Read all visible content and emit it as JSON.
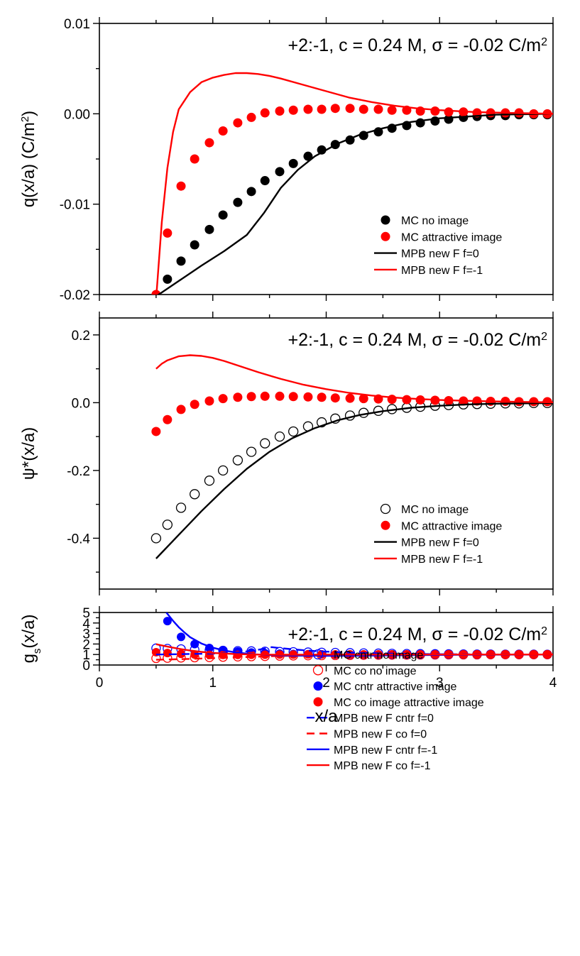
{
  "x_axis": {
    "label": "x/a",
    "ticks": [
      "0",
      "1",
      "2",
      "3",
      "4"
    ]
  },
  "chart_data": [
    {
      "type": "line",
      "title": "+2:-1, c = 0.24 M, σ = -0.02 C/m²",
      "ylabel": "q(x/a) (C/m²)",
      "xlabel": "x/a",
      "xlim": [
        0,
        4
      ],
      "ylim": [
        -0.02,
        0.01
      ],
      "yticks": [
        "-0.02",
        "-0.01",
        "0.00",
        "0.01"
      ],
      "grid": false,
      "legend_position": "bottom-right",
      "series": [
        {
          "name": "MC no image",
          "kind": "filled-circle",
          "color": "#000000",
          "x": [
            0.6,
            0.72,
            0.84,
            0.97,
            1.09,
            1.22,
            1.34,
            1.46,
            1.59,
            1.71,
            1.84,
            1.96,
            2.08,
            2.21,
            2.33,
            2.46,
            2.58,
            2.71,
            2.83,
            2.96,
            3.08,
            3.21,
            3.33,
            3.45,
            3.58,
            3.7,
            3.83,
            3.95
          ],
          "y": [
            -0.0183,
            -0.0163,
            -0.0145,
            -0.0128,
            -0.0112,
            -0.0098,
            -0.0086,
            -0.0074,
            -0.0064,
            -0.0055,
            -0.0047,
            -0.004,
            -0.0034,
            -0.0029,
            -0.0024,
            -0.002,
            -0.0016,
            -0.0013,
            -0.001,
            -0.0008,
            -0.0006,
            -0.0004,
            -0.0003,
            -0.0002,
            -0.0002,
            -0.0001,
            -0.0001,
            -0.0001
          ]
        },
        {
          "name": "MC attractive image",
          "kind": "filled-circle",
          "color": "#ff0000",
          "x": [
            0.5,
            0.6,
            0.72,
            0.84,
            0.97,
            1.09,
            1.22,
            1.34,
            1.46,
            1.59,
            1.71,
            1.84,
            1.96,
            2.08,
            2.21,
            2.33,
            2.46,
            2.58,
            2.71,
            2.83,
            2.96,
            3.08,
            3.21,
            3.33,
            3.45,
            3.58,
            3.7,
            3.83,
            3.95
          ],
          "y": [
            -0.02,
            -0.0132,
            -0.008,
            -0.005,
            -0.0032,
            -0.0019,
            -0.001,
            -0.0004,
            0.0001,
            0.0003,
            0.0004,
            0.0005,
            0.0005,
            0.0006,
            0.0006,
            0.0005,
            0.0005,
            0.0004,
            0.0004,
            0.0003,
            0.0003,
            0.0002,
            0.0002,
            0.0001,
            0.0001,
            0.0001,
            0.0001,
            0.0,
            0.0
          ]
        },
        {
          "name": "MPB new F f=0",
          "kind": "line",
          "color": "#000000",
          "x": [
            0.5,
            0.7,
            0.9,
            1.1,
            1.3,
            1.45,
            1.6,
            1.75,
            1.9,
            2.1,
            2.3,
            2.5,
            2.75,
            3.0,
            3.25,
            3.5,
            4.0
          ],
          "y": [
            -0.0202,
            -0.0185,
            -0.0168,
            -0.0152,
            -0.0134,
            -0.011,
            -0.0082,
            -0.0062,
            -0.0047,
            -0.0033,
            -0.0023,
            -0.0016,
            -0.0009,
            -0.0005,
            -0.0003,
            -0.0001,
            0.0
          ]
        },
        {
          "name": "MPB new F f=-1",
          "kind": "line",
          "color": "#ff0000",
          "x": [
            0.5,
            0.55,
            0.6,
            0.65,
            0.7,
            0.8,
            0.9,
            1.0,
            1.1,
            1.2,
            1.3,
            1.4,
            1.5,
            1.6,
            1.8,
            2.0,
            2.2,
            2.4,
            2.6,
            2.8,
            3.0,
            3.3,
            3.6,
            4.0
          ],
          "y": [
            -0.0205,
            -0.012,
            -0.006,
            -0.002,
            0.0005,
            0.0024,
            0.0035,
            0.004,
            0.0043,
            0.0045,
            0.0045,
            0.0044,
            0.0042,
            0.0039,
            0.0032,
            0.0025,
            0.0018,
            0.0013,
            0.0009,
            0.0006,
            0.0004,
            0.0002,
            0.0001,
            0.0
          ]
        }
      ]
    },
    {
      "type": "line",
      "title": "+2:-1, c = 0.24 M, σ = -0.02 C/m²",
      "ylabel": "ψ*(x/a)",
      "xlabel": "x/a",
      "xlim": [
        0,
        4
      ],
      "ylim": [
        -0.55,
        0.25
      ],
      "yticks": [
        "-0.4",
        "-0.2",
        "0.0",
        "0.2"
      ],
      "grid": false,
      "legend_position": "bottom-right",
      "series": [
        {
          "name": "MC no image",
          "kind": "open-circle",
          "color": "#000000",
          "x": [
            0.5,
            0.6,
            0.72,
            0.84,
            0.97,
            1.09,
            1.22,
            1.34,
            1.46,
            1.59,
            1.71,
            1.84,
            1.96,
            2.08,
            2.21,
            2.33,
            2.46,
            2.58,
            2.71,
            2.83,
            2.96,
            3.08,
            3.21,
            3.33,
            3.45,
            3.58,
            3.7,
            3.83,
            3.95
          ],
          "y": [
            -0.4,
            -0.36,
            -0.31,
            -0.27,
            -0.23,
            -0.2,
            -0.17,
            -0.145,
            -0.12,
            -0.1,
            -0.085,
            -0.07,
            -0.058,
            -0.047,
            -0.038,
            -0.03,
            -0.024,
            -0.019,
            -0.015,
            -0.012,
            -0.009,
            -0.007,
            -0.005,
            -0.004,
            -0.003,
            -0.002,
            -0.002,
            -0.001,
            -0.001
          ]
        },
        {
          "name": "MC attractive image",
          "kind": "filled-circle",
          "color": "#ff0000",
          "x": [
            0.5,
            0.6,
            0.72,
            0.84,
            0.97,
            1.09,
            1.22,
            1.34,
            1.46,
            1.59,
            1.71,
            1.84,
            1.96,
            2.08,
            2.21,
            2.33,
            2.46,
            2.58,
            2.71,
            2.83,
            2.96,
            3.08,
            3.21,
            3.33,
            3.45,
            3.58,
            3.7,
            3.83,
            3.95
          ],
          "y": [
            -0.085,
            -0.05,
            -0.02,
            -0.005,
            0.005,
            0.012,
            0.016,
            0.018,
            0.019,
            0.019,
            0.018,
            0.017,
            0.016,
            0.014,
            0.013,
            0.012,
            0.011,
            0.01,
            0.009,
            0.008,
            0.007,
            0.006,
            0.005,
            0.005,
            0.004,
            0.004,
            0.003,
            0.003,
            0.003
          ]
        },
        {
          "name": "MPB new F f=0",
          "kind": "line",
          "color": "#000000",
          "x": [
            0.5,
            0.7,
            0.9,
            1.1,
            1.3,
            1.5,
            1.7,
            1.9,
            2.1,
            2.3,
            2.5,
            2.75,
            3.0,
            3.25,
            3.5,
            4.0
          ],
          "y": [
            -0.46,
            -0.39,
            -0.32,
            -0.255,
            -0.195,
            -0.145,
            -0.105,
            -0.075,
            -0.052,
            -0.036,
            -0.025,
            -0.015,
            -0.009,
            -0.005,
            -0.003,
            -0.001
          ]
        },
        {
          "name": "MPB new F f=-1",
          "kind": "line",
          "color": "#ff0000",
          "x": [
            0.5,
            0.55,
            0.6,
            0.7,
            0.8,
            0.9,
            1.0,
            1.1,
            1.2,
            1.4,
            1.6,
            1.8,
            2.0,
            2.2,
            2.4,
            2.6,
            2.8,
            3.0,
            3.3,
            3.6,
            4.0
          ],
          "y": [
            0.1,
            0.115,
            0.125,
            0.137,
            0.14,
            0.138,
            0.132,
            0.123,
            0.112,
            0.09,
            0.07,
            0.053,
            0.04,
            0.029,
            0.021,
            0.015,
            0.011,
            0.008,
            0.005,
            0.003,
            0.001
          ]
        }
      ]
    },
    {
      "type": "line",
      "title": "+2:-1, c = 0.24 M, σ = -0.02 C/m²",
      "ylabel": "g_s(x/a)",
      "xlabel": "x/a",
      "xlim": [
        0,
        4
      ],
      "ylim": [
        0,
        5
      ],
      "yticks": [
        "0",
        "1",
        "2",
        "3",
        "4",
        "5"
      ],
      "grid": false,
      "legend_position": "top-right",
      "series": [
        {
          "name": "MC cntr no image",
          "kind": "open-circle",
          "color": "#0000ff",
          "x": [
            0.5,
            0.6,
            0.72,
            0.84,
            0.97,
            1.09,
            1.22,
            1.34,
            1.46,
            1.59,
            1.71,
            1.84,
            1.96,
            2.08,
            2.21,
            2.33,
            2.46,
            2.58,
            2.71,
            2.83,
            2.96,
            3.08,
            3.21,
            3.33,
            3.45,
            3.58,
            3.7,
            3.83,
            3.95
          ],
          "y": [
            1.6,
            1.56,
            1.52,
            1.46,
            1.42,
            1.38,
            1.35,
            1.33,
            1.3,
            1.27,
            1.25,
            1.22,
            1.2,
            1.18,
            1.16,
            1.14,
            1.12,
            1.1,
            1.08,
            1.07,
            1.06,
            1.05,
            1.04,
            1.03,
            1.03,
            1.02,
            1.02,
            1.02,
            1.01
          ]
        },
        {
          "name": "MC co no image",
          "kind": "open-circle",
          "color": "#ff0000",
          "x": [
            0.5,
            0.6,
            0.72,
            0.84,
            0.97,
            1.09,
            1.22,
            1.34,
            1.46,
            1.59,
            1.71,
            1.84,
            1.96,
            2.08,
            2.21,
            2.33,
            2.46,
            2.58,
            2.71,
            2.83,
            2.96,
            3.08,
            3.21,
            3.33,
            3.45,
            3.58,
            3.7,
            3.83,
            3.95
          ],
          "y": [
            0.64,
            0.66,
            0.69,
            0.71,
            0.73,
            0.76,
            0.79,
            0.81,
            0.83,
            0.86,
            0.88,
            0.9,
            0.91,
            0.92,
            0.93,
            0.94,
            0.95,
            0.96,
            0.96,
            0.97,
            0.97,
            0.98,
            0.98,
            0.98,
            0.99,
            0.99,
            0.99,
            0.99,
            0.99
          ]
        },
        {
          "name": "MC cntr attractive image",
          "kind": "filled-circle",
          "color": "#0000ff",
          "x": [
            0.6,
            0.72,
            0.84,
            0.97,
            1.09,
            1.22,
            1.34,
            1.46,
            1.59,
            1.71,
            1.84,
            1.96,
            2.08,
            2.21,
            2.33,
            2.46,
            2.58,
            2.71,
            2.83,
            2.96,
            3.08,
            3.21,
            3.33,
            3.45,
            3.58,
            3.7,
            3.83,
            3.95
          ],
          "y": [
            4.18,
            2.68,
            1.99,
            1.62,
            1.42,
            1.28,
            1.19,
            1.12,
            1.08,
            1.05,
            1.03,
            1.01,
            1.0,
            0.99,
            0.99,
            0.98,
            0.98,
            0.98,
            0.98,
            0.98,
            0.98,
            0.98,
            0.98,
            0.99,
            0.99,
            0.99,
            0.99,
            0.99
          ]
        },
        {
          "name": "MC co image attractive image",
          "kind": "filled-circle",
          "color": "#ff0000",
          "x": [
            0.5,
            0.6,
            0.72,
            0.84,
            0.97,
            1.09,
            1.22,
            1.34,
            1.46,
            1.59,
            1.71,
            1.84,
            1.96,
            2.08,
            2.21,
            2.33,
            2.46,
            2.58,
            2.71,
            2.83,
            2.96,
            3.08,
            3.21,
            3.33,
            3.45,
            3.58,
            3.7,
            3.83,
            3.95
          ],
          "y": [
            1.22,
            1.14,
            1.06,
            1.0,
            0.97,
            0.96,
            0.96,
            0.97,
            0.98,
            1.0,
            1.0,
            1.01,
            1.01,
            1.01,
            1.01,
            1.01,
            1.01,
            1.01,
            1.01,
            1.01,
            1.01,
            1.01,
            1.0,
            1.0,
            1.0,
            1.0,
            1.0,
            1.0,
            1.0
          ]
        },
        {
          "name": "MPB new F cntr f=0",
          "kind": "dashed",
          "color": "#0000ff",
          "x": [
            0.5,
            0.75,
            1.0,
            1.2,
            1.35,
            1.45,
            1.52,
            1.6,
            1.75,
            1.9,
            2.1,
            2.3,
            2.5,
            2.75,
            3.0,
            3.5,
            4.0
          ],
          "y": [
            1.0,
            1.04,
            1.09,
            1.18,
            1.35,
            1.55,
            1.7,
            1.6,
            1.45,
            1.33,
            1.22,
            1.15,
            1.1,
            1.06,
            1.03,
            1.01,
            1.0
          ]
        },
        {
          "name": "MPB new F co f=0",
          "kind": "dashed",
          "color": "#ff0000",
          "x": [
            0.5,
            0.75,
            1.0,
            1.25,
            1.5,
            1.75,
            2.0,
            2.25,
            2.5,
            3.0,
            3.5,
            4.0
          ],
          "y": [
            0.5,
            0.57,
            0.65,
            0.74,
            0.84,
            0.9,
            0.93,
            0.95,
            0.97,
            0.99,
            0.995,
            1.0
          ]
        },
        {
          "name": "MPB new F cntr f=-1",
          "kind": "line",
          "color": "#0000ff",
          "x": [
            0.59,
            0.65,
            0.7,
            0.75,
            0.8,
            0.9,
            1.0,
            1.1,
            1.2,
            1.35,
            1.5,
            1.7,
            2.0,
            2.4,
            2.8,
            3.2,
            4.0
          ],
          "y": [
            5.0,
            4.2,
            3.6,
            3.1,
            2.65,
            2.05,
            1.65,
            1.38,
            1.2,
            1.03,
            0.95,
            0.9,
            0.88,
            0.9,
            0.94,
            0.97,
            1.0
          ]
        },
        {
          "name": "MPB new F co f=-1",
          "kind": "line",
          "color": "#ff0000",
          "x": [
            0.5,
            0.6,
            0.7,
            0.8,
            0.9,
            1.0,
            1.2,
            1.4,
            1.6,
            1.8,
            2.0,
            2.5,
            3.0,
            3.5,
            4.0
          ],
          "y": [
            1.98,
            1.75,
            1.55,
            1.38,
            1.25,
            1.15,
            1.04,
            0.99,
            0.98,
            0.98,
            0.99,
            0.99,
            1.0,
            1.0,
            1.0
          ]
        }
      ]
    }
  ]
}
